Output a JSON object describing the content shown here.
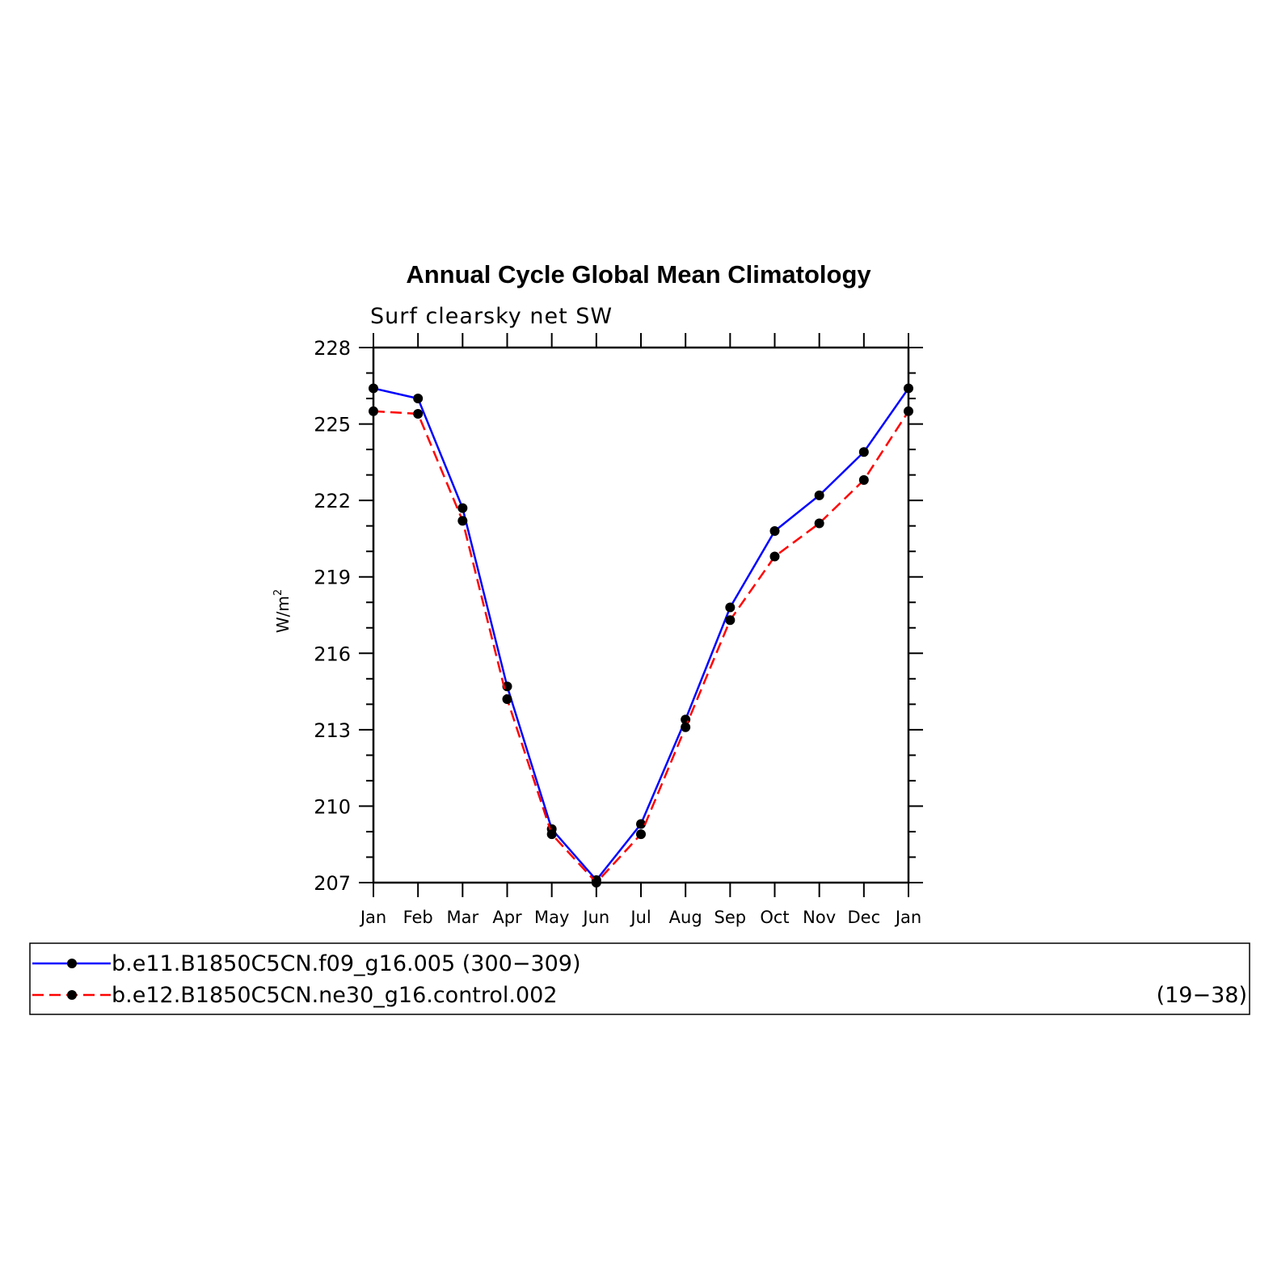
{
  "chart_data": {
    "type": "line",
    "title": "Annual Cycle Global Mean Climatology",
    "subtitle": "Surf clearsky net SW",
    "ylabel_base": "W/m",
    "ylabel_sup": "2",
    "ylim": [
      207,
      228
    ],
    "yticks": [
      207,
      210,
      213,
      216,
      219,
      222,
      225,
      228
    ],
    "yticks_minor_step": 1,
    "categories": [
      "Jan",
      "Feb",
      "Mar",
      "Apr",
      "May",
      "Jun",
      "Jul",
      "Aug",
      "Sep",
      "Oct",
      "Nov",
      "Dec",
      "Jan"
    ],
    "series": [
      {
        "name": "b.e11.B1850C5CN.f09_g16.005",
        "years": "(300−309)",
        "color": "#0000ff",
        "dash": "solid",
        "values": [
          226.4,
          226.0,
          221.7,
          214.7,
          209.1,
          207.1,
          209.3,
          213.4,
          217.8,
          220.8,
          222.2,
          223.9,
          226.4
        ]
      },
      {
        "name": "b.e12.B1850C5CN.ne30_g16.control.002",
        "years": "(19−38)",
        "color": "#ff0000",
        "dash": "dashed",
        "values": [
          225.5,
          225.4,
          221.2,
          214.2,
          208.9,
          207.0,
          208.9,
          213.1,
          217.3,
          219.8,
          221.1,
          222.8,
          225.5
        ]
      }
    ]
  }
}
